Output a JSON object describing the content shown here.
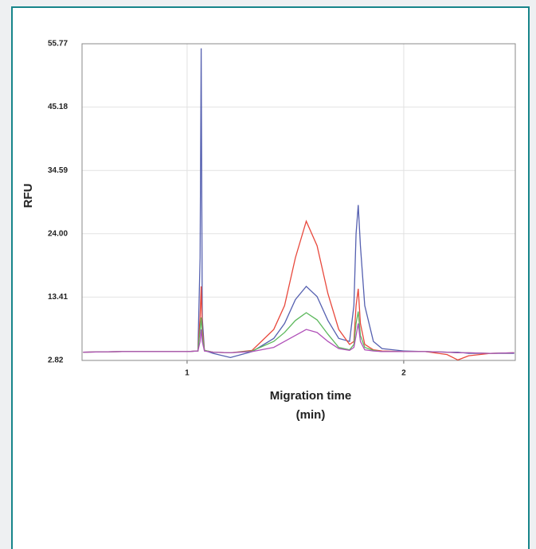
{
  "chart_data": {
    "type": "line",
    "xlabel": "Migration time",
    "xunit": "(min)",
    "ylabel": "RFU",
    "xlim": [
      0.515,
      2.515
    ],
    "ylim": [
      2.82,
      55.77
    ],
    "xticks": [
      1,
      2
    ],
    "yticks": [
      2.82,
      13.41,
      {
        "value": 24,
        "label": "24.00"
      },
      34.59,
      45.18,
      55.77
    ],
    "grid": true,
    "x": [
      0.52,
      0.7,
      0.9,
      1.0,
      1.05,
      1.06,
      1.065,
      1.07,
      1.08,
      1.12,
      1.2,
      1.3,
      1.4,
      1.45,
      1.5,
      1.55,
      1.6,
      1.65,
      1.7,
      1.75,
      1.77,
      1.78,
      1.79,
      1.8,
      1.82,
      1.86,
      1.9,
      2.0,
      2.1,
      2.2,
      2.25,
      2.3,
      2.4,
      2.51
    ],
    "series": [
      {
        "name": "blue",
        "color": "#5560b0",
        "values": [
          4.2,
          4.3,
          4.3,
          4.3,
          4.4,
          20,
          55,
          10,
          4.5,
          4.0,
          3.3,
          4.3,
          6.5,
          9,
          13,
          15.2,
          13.5,
          9.5,
          6.5,
          6.0,
          12,
          24,
          28.8,
          22,
          12,
          6,
          4.8,
          4.4,
          4.3,
          4.2,
          4.2,
          4.0,
          4.0,
          4.0
        ]
      },
      {
        "name": "red",
        "color": "#e8483c",
        "values": [
          4.2,
          4.3,
          4.3,
          4.3,
          4.4,
          10,
          15.2,
          8,
          4.5,
          4.2,
          4.1,
          4.5,
          8,
          12,
          20,
          26.1,
          22,
          14,
          8,
          5.5,
          6,
          12,
          14.8,
          9,
          5.5,
          4.6,
          4.4,
          4.3,
          4.3,
          3.8,
          2.9,
          3.6,
          4.0,
          4.1
        ]
      },
      {
        "name": "green",
        "color": "#5cb85c",
        "values": [
          4.2,
          4.3,
          4.3,
          4.3,
          4.4,
          8,
          10,
          7,
          4.5,
          4.2,
          4.1,
          4.4,
          6,
          7.5,
          9.5,
          10.8,
          9.6,
          7.2,
          5,
          4.6,
          5.5,
          9,
          11,
          7,
          5,
          4.5,
          4.3,
          4.3,
          4.3,
          4.2,
          4.1,
          4.1,
          4.0,
          4.1
        ]
      },
      {
        "name": "purple",
        "color": "#b050b8",
        "values": [
          4.2,
          4.3,
          4.3,
          4.3,
          4.4,
          6,
          8,
          6,
          4.4,
          4.2,
          4.1,
          4.3,
          5,
          6,
          7,
          8.0,
          7.5,
          6,
          4.8,
          4.5,
          5,
          7,
          9,
          6,
          4.6,
          4.4,
          4.3,
          4.3,
          4.3,
          4.2,
          4.1,
          4.1,
          4.0,
          4.1
        ]
      }
    ]
  }
}
